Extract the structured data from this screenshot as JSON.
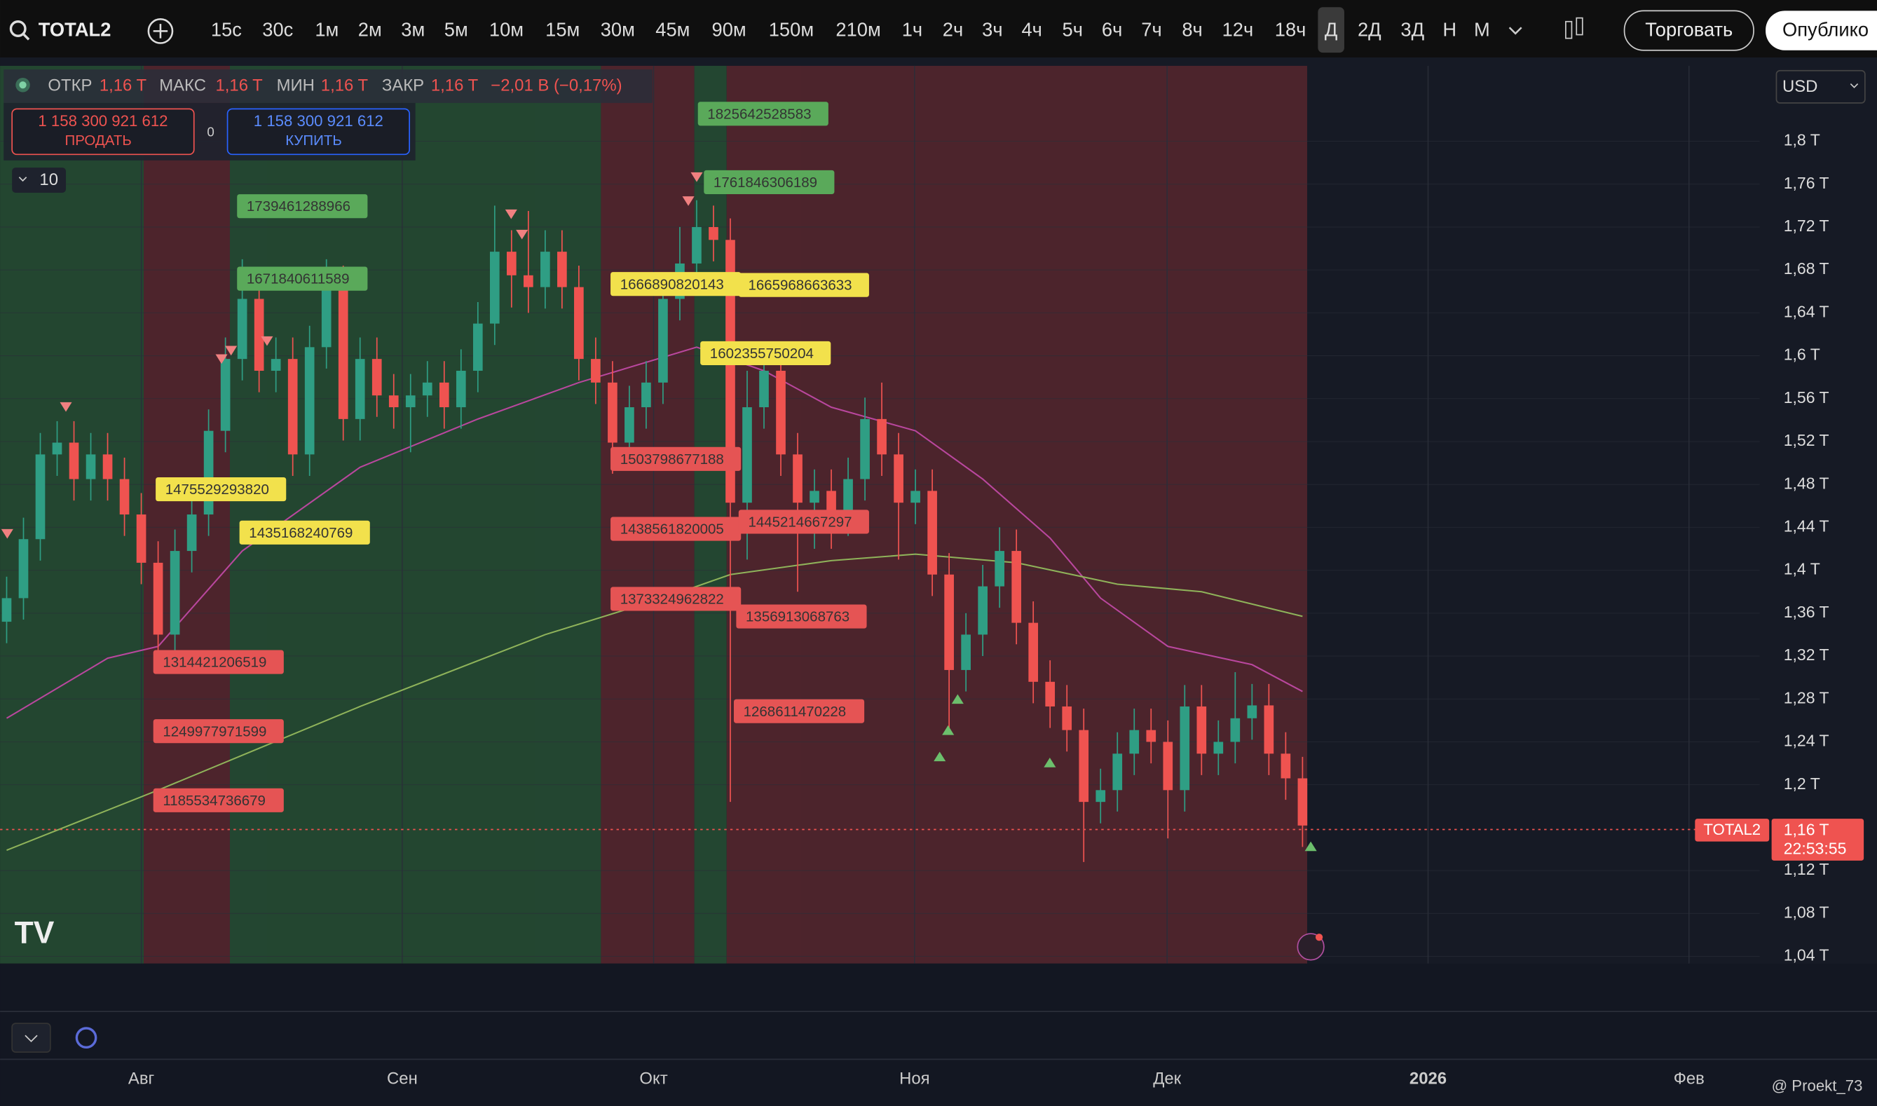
{
  "toolbar": {
    "symbol": "TOTAL2",
    "intervals": [
      "15с",
      "30с",
      "1м",
      "2м",
      "3м",
      "5м",
      "10м",
      "15м",
      "30м",
      "45м",
      "90м",
      "150м",
      "210м",
      "1ч",
      "2ч",
      "3ч",
      "4ч",
      "5ч",
      "6ч",
      "7ч",
      "8ч",
      "12ч",
      "18ч",
      "Д",
      "2Д",
      "3Д",
      "Н",
      "М"
    ],
    "trade": "Торговать",
    "publish": "Опублико"
  },
  "legend": {
    "items": [
      [
        "ОТКР",
        "1,16 T"
      ],
      [
        "МАКС",
        "1,16 T"
      ],
      [
        "МИН",
        "1,16 T"
      ],
      [
        "ЗАКР",
        "1,16 T"
      ]
    ],
    "change": "−2,01 B (−0,17%)"
  },
  "order": {
    "sell_price": "1 158 300 921 612",
    "sell": "ПРОДАТЬ",
    "spread": 0,
    "buy_price": "1 158 300 921 612",
    "buy": "КУПИТЬ"
  },
  "indicators_count": "10",
  "currency": "USD",
  "watermark": "@ Proekt_73",
  "chart_data": {
    "type": "candlestick",
    "up_color": "#2f9e84",
    "down_color": "#ef5350",
    "ylim": [
      1033300000000.0,
      1870300000000.0
    ],
    "yticks": [
      {
        "value": 1800000000000.0,
        "label": "1,8 T"
      },
      {
        "value": 1760000000000.0,
        "label": "1,76 T"
      },
      {
        "value": 1720000000000.0,
        "label": "1,72 T"
      },
      {
        "value": 1680000000000.0,
        "label": "1,68 T"
      },
      {
        "value": 1640000000000.0,
        "label": "1,64 T"
      },
      {
        "value": 1600000000000.0,
        "label": "1,6 T"
      },
      {
        "value": 1560000000000.0,
        "label": "1,56 T"
      },
      {
        "value": 1520000000000.0,
        "label": "1,52 T"
      },
      {
        "value": 1480000000000.0,
        "label": "1,48 T"
      },
      {
        "value": 1440000000000.0,
        "label": "1,44 T"
      },
      {
        "value": 1400000000000.0,
        "label": "1,4 T"
      },
      {
        "value": 1360000000000.0,
        "label": "1,36 T"
      },
      {
        "value": 1320000000000.0,
        "label": "1,32 T"
      },
      {
        "value": 1280000000000.0,
        "label": "1,28 T"
      },
      {
        "value": 1240000000000.0,
        "label": "1,24 T"
      },
      {
        "value": 1200000000000.0,
        "label": "1,2 T"
      },
      {
        "value": 1120000000000.0,
        "label": "1,12 T"
      },
      {
        "value": 1080000000000.0,
        "label": "1,08 T"
      },
      {
        "value": 1040000000000.0,
        "label": "1,04 T"
      }
    ],
    "x_labels": [
      "Авг",
      "Сен",
      "Окт",
      "Ноя",
      "Дек",
      "2026",
      "Фев"
    ],
    "ohlc": [
      [
        1352000000000.0,
        1394000000000.0,
        1332000000000.0,
        1374000000000.0
      ],
      [
        1374000000000.0,
        1449000000000.0,
        1354000000000.0,
        1429000000000.0
      ],
      [
        1429000000000.0,
        1528000000000.0,
        1409000000000.0,
        1508000000000.0
      ],
      [
        1508000000000.0,
        1539000000000.0,
        1488000000000.0,
        1519000000000.0
      ],
      [
        1519000000000.0,
        1539000000000.0,
        1465000000000.0,
        1485000000000.0
      ],
      [
        1485000000000.0,
        1528000000000.0,
        1465000000000.0,
        1508000000000.0
      ],
      [
        1508000000000.0,
        1528000000000.0,
        1465000000000.0,
        1485000000000.0
      ],
      [
        1485000000000.0,
        1505000000000.0,
        1432000000000.0,
        1452000000000.0
      ],
      [
        1452000000000.0,
        1472000000000.0,
        1387000000000.0,
        1407000000000.0
      ],
      [
        1407000000000.0,
        1427000000000.0,
        1320000000000.0,
        1340000000000.0
      ],
      [
        1340000000000.0,
        1438000000000.0,
        1320000000000.0,
        1418000000000.0
      ],
      [
        1418000000000.0,
        1472000000000.0,
        1398000000000.0,
        1452000000000.0
      ],
      [
        1452000000000.0,
        1550000000000.0,
        1432000000000.0,
        1530000000000.0
      ],
      [
        1530000000000.0,
        1617000000000.0,
        1510000000000.0,
        1597000000000.0
      ],
      [
        1597000000000.0,
        1690000000000.0,
        1577000000000.0,
        1653000000000.0
      ],
      [
        1653000000000.0,
        1673000000000.0,
        1566000000000.0,
        1586000000000.0
      ],
      [
        1586000000000.0,
        1617000000000.0,
        1566000000000.0,
        1597000000000.0
      ],
      [
        1597000000000.0,
        1617000000000.0,
        1488000000000.0,
        1508000000000.0
      ],
      [
        1508000000000.0,
        1628000000000.0,
        1488000000000.0,
        1608000000000.0
      ],
      [
        1608000000000.0,
        1690000000000.0,
        1588000000000.0,
        1664000000000.0
      ],
      [
        1664000000000.0,
        1684000000000.0,
        1521000000000.0,
        1541000000000.0
      ],
      [
        1541000000000.0,
        1617000000000.0,
        1521000000000.0,
        1597000000000.0
      ],
      [
        1597000000000.0,
        1617000000000.0,
        1543000000000.0,
        1563000000000.0
      ],
      [
        1563000000000.0,
        1583000000000.0,
        1532000000000.0,
        1552000000000.0
      ],
      [
        1552000000000.0,
        1583000000000.0,
        1510000000000.0,
        1563000000000.0
      ],
      [
        1563000000000.0,
        1595000000000.0,
        1543000000000.0,
        1575000000000.0
      ],
      [
        1575000000000.0,
        1595000000000.0,
        1532000000000.0,
        1552000000000.0
      ],
      [
        1552000000000.0,
        1606000000000.0,
        1532000000000.0,
        1586000000000.0
      ],
      [
        1586000000000.0,
        1650000000000.0,
        1566000000000.0,
        1630000000000.0
      ],
      [
        1630000000000.0,
        1740000000000.0,
        1610000000000.0,
        1697000000000.0
      ],
      [
        1697000000000.0,
        1717000000000.0,
        1645000000000.0,
        1675000000000.0
      ],
      [
        1675000000000.0,
        1735000000000.0,
        1640000000000.0,
        1664000000000.0
      ],
      [
        1664000000000.0,
        1717000000000.0,
        1644000000000.0,
        1697000000000.0
      ],
      [
        1697000000000.0,
        1717000000000.0,
        1644000000000.0,
        1664000000000.0
      ],
      [
        1664000000000.0,
        1684000000000.0,
        1577000000000.0,
        1597000000000.0
      ],
      [
        1597000000000.0,
        1617000000000.0,
        1555000000000.0,
        1575000000000.0
      ],
      [
        1575000000000.0,
        1595000000000.0,
        1490000000000.0,
        1519000000000.0
      ],
      [
        1519000000000.0,
        1572000000000.0,
        1499000000000.0,
        1552000000000.0
      ],
      [
        1552000000000.0,
        1595000000000.0,
        1532000000000.0,
        1575000000000.0
      ],
      [
        1575000000000.0,
        1673000000000.0,
        1555000000000.0,
        1653000000000.0
      ],
      [
        1653000000000.0,
        1720000000000.0,
        1633000000000.0,
        1686000000000.0
      ],
      [
        1686000000000.0,
        1745000000000.0,
        1666000000000.0,
        1720000000000.0
      ],
      [
        1720000000000.0,
        1740000000000.0,
        1688000000000.0,
        1708000000000.0
      ],
      [
        1708000000000.0,
        1728000000000.0,
        1184000000000.0,
        1463000000000.0
      ],
      [
        1463000000000.0,
        1586000000000.0,
        1410000000000.0,
        1552000000000.0
      ],
      [
        1552000000000.0,
        1606000000000.0,
        1532000000000.0,
        1586000000000.0
      ],
      [
        1586000000000.0,
        1606000000000.0,
        1488000000000.0,
        1508000000000.0
      ],
      [
        1508000000000.0,
        1528000000000.0,
        1380000000000.0,
        1463000000000.0
      ],
      [
        1463000000000.0,
        1494000000000.0,
        1420000000000.0,
        1474000000000.0
      ],
      [
        1474000000000.0,
        1494000000000.0,
        1420000000000.0,
        1452000000000.0
      ],
      [
        1452000000000.0,
        1505000000000.0,
        1432000000000.0,
        1485000000000.0
      ],
      [
        1485000000000.0,
        1561000000000.0,
        1465000000000.0,
        1541000000000.0
      ],
      [
        1541000000000.0,
        1575000000000.0,
        1488000000000.0,
        1508000000000.0
      ],
      [
        1508000000000.0,
        1528000000000.0,
        1410000000000.0,
        1463000000000.0
      ],
      [
        1463000000000.0,
        1494000000000.0,
        1443000000000.0,
        1474000000000.0
      ],
      [
        1474000000000.0,
        1494000000000.0,
        1376000000000.0,
        1396000000000.0
      ],
      [
        1396000000000.0,
        1416000000000.0,
        1250000000000.0,
        1307000000000.0
      ],
      [
        1307000000000.0,
        1360000000000.0,
        1287000000000.0,
        1340000000000.0
      ],
      [
        1340000000000.0,
        1405000000000.0,
        1320000000000.0,
        1385000000000.0
      ],
      [
        1385000000000.0,
        1440000000000.0,
        1365000000000.0,
        1418000000000.0
      ],
      [
        1418000000000.0,
        1438000000000.0,
        1331000000000.0,
        1351000000000.0
      ],
      [
        1351000000000.0,
        1371000000000.0,
        1276000000000.0,
        1296000000000.0
      ],
      [
        1296000000000.0,
        1316000000000.0,
        1253000000000.0,
        1273000000000.0
      ],
      [
        1273000000000.0,
        1293000000000.0,
        1231000000000.0,
        1251000000000.0
      ],
      [
        1251000000000.0,
        1271000000000.0,
        1128000000000.0,
        1184000000000.0
      ],
      [
        1184000000000.0,
        1215000000000.0,
        1164000000000.0,
        1195000000000.0
      ],
      [
        1195000000000.0,
        1249000000000.0,
        1175000000000.0,
        1229000000000.0
      ],
      [
        1229000000000.0,
        1271000000000.0,
        1209000000000.0,
        1251000000000.0
      ],
      [
        1251000000000.0,
        1271000000000.0,
        1220000000000.0,
        1240000000000.0
      ],
      [
        1240000000000.0,
        1260000000000.0,
        1150000000000.0,
        1195000000000.0
      ],
      [
        1195000000000.0,
        1293000000000.0,
        1175000000000.0,
        1273000000000.0
      ],
      [
        1273000000000.0,
        1293000000000.0,
        1209000000000.0,
        1229000000000.0
      ],
      [
        1229000000000.0,
        1260000000000.0,
        1209000000000.0,
        1240000000000.0
      ],
      [
        1240000000000.0,
        1305000000000.0,
        1220000000000.0,
        1262000000000.0
      ],
      [
        1262000000000.0,
        1294000000000.0,
        1242000000000.0,
        1274000000000.0
      ],
      [
        1274000000000.0,
        1294000000000.0,
        1209000000000.0,
        1229000000000.0
      ],
      [
        1229000000000.0,
        1249000000000.0,
        1186000000000.0,
        1206000000000.0
      ],
      [
        1206000000000.0,
        1226000000000.0,
        1142000000000.0,
        1162000000000.0
      ]
    ],
    "moving_averages": [
      {
        "color": "#b9479e",
        "points": [
          [
            0,
            1262000000000.0
          ],
          [
            6,
            1318000000000.0
          ],
          [
            9,
            1329000000000.0
          ],
          [
            14,
            1418000000000.0
          ],
          [
            21,
            1496000000000.0
          ],
          [
            28,
            1541000000000.0
          ],
          [
            34,
            1575000000000.0
          ],
          [
            41,
            1608000000000.0
          ],
          [
            45,
            1586000000000.0
          ],
          [
            49,
            1552000000000.0
          ],
          [
            54,
            1530000000000.0
          ],
          [
            58,
            1485000000000.0
          ],
          [
            62,
            1430000000000.0
          ],
          [
            65,
            1374000000000.0
          ],
          [
            69,
            1329000000000.0
          ],
          [
            74,
            1312000000000.0
          ],
          [
            77,
            1287000000000.0
          ]
        ]
      },
      {
        "color": "#8fb35a",
        "points": [
          [
            0,
            1139000000000.0
          ],
          [
            9,
            1195000000000.0
          ],
          [
            21,
            1273000000000.0
          ],
          [
            32,
            1340000000000.0
          ],
          [
            39,
            1374000000000.0
          ],
          [
            43,
            1396000000000.0
          ],
          [
            49,
            1409000000000.0
          ],
          [
            54,
            1415000000000.0
          ],
          [
            60,
            1407000000000.0
          ],
          [
            66,
            1387000000000.0
          ],
          [
            71,
            1380000000000.0
          ],
          [
            77,
            1357000000000.0
          ]
        ]
      }
    ],
    "levels": [
      {
        "value": 1825642528583,
        "color": "#5aa95a"
      },
      {
        "value": 1761846306189,
        "color": "#5aa95a"
      },
      {
        "value": 1739461288966,
        "color": "#5aa95a"
      },
      {
        "value": 1671840611589,
        "color": "#5aa95a"
      },
      {
        "value": 1666890820143,
        "color": "#f2e14c"
      },
      {
        "value": 1665968663633,
        "color": "#f2e14c"
      },
      {
        "value": 1602355750204,
        "color": "#f2e14c"
      },
      {
        "value": 1475529293820,
        "color": "#f2e14c"
      },
      {
        "value": 1435168240769,
        "color": "#f2e14c"
      },
      {
        "value": 1503798677188,
        "color": "#e55454"
      },
      {
        "value": 1438561820005,
        "color": "#e55454"
      },
      {
        "value": 1445214667297,
        "color": "#e55454"
      },
      {
        "value": 1373324962822,
        "color": "#e55454"
      },
      {
        "value": 1356913068763,
        "color": "#e55454"
      },
      {
        "value": 1314421206519,
        "color": "#e55454"
      },
      {
        "value": 1249977971599,
        "color": "#e55454"
      },
      {
        "value": 1268611470228,
        "color": "#e55454"
      },
      {
        "value": 1185534736679,
        "color": "#e55454"
      }
    ],
    "last_price": 1158300921612,
    "price_tag": {
      "symbol": "TOTAL2",
      "price": "1,16 T",
      "countdown": "22:53:55"
    }
  }
}
